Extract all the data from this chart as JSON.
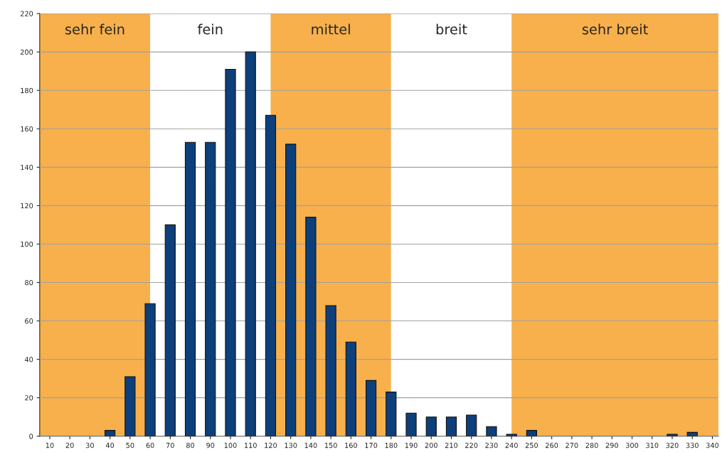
{
  "chart_data": {
    "type": "bar",
    "x": [
      10,
      20,
      30,
      40,
      50,
      60,
      70,
      80,
      90,
      100,
      110,
      120,
      130,
      140,
      150,
      160,
      170,
      180,
      190,
      200,
      210,
      220,
      230,
      240,
      250,
      260,
      270,
      280,
      290,
      300,
      310,
      320,
      330,
      340
    ],
    "values": [
      0,
      0,
      0,
      3,
      31,
      69,
      110,
      153,
      153,
      191,
      200,
      167,
      152,
      114,
      68,
      49,
      29,
      23,
      12,
      10,
      10,
      11,
      5,
      1,
      3,
      0,
      0,
      0,
      0,
      0,
      0,
      1,
      2,
      0
    ],
    "color": "#0d3f7a",
    "xlim": [
      5,
      343
    ],
    "xticks": [
      10,
      20,
      30,
      40,
      50,
      60,
      70,
      80,
      90,
      100,
      110,
      120,
      130,
      140,
      150,
      160,
      170,
      180,
      190,
      200,
      210,
      220,
      230,
      240,
      250,
      260,
      270,
      280,
      290,
      300,
      310,
      320,
      330,
      340
    ],
    "ylim": [
      0,
      220
    ],
    "yticks": [
      0,
      20,
      40,
      60,
      80,
      100,
      120,
      140,
      160,
      180,
      200,
      220
    ],
    "grid": "y",
    "bands": [
      {
        "axis": "x",
        "from": 5,
        "to": 60,
        "label": "sehr fein",
        "color": "#f7b04c"
      },
      {
        "axis": "x",
        "from": 60,
        "to": 120,
        "label": "fein",
        "color": "#ffffff"
      },
      {
        "axis": "x",
        "from": 120,
        "to": 180,
        "label": "mittel",
        "color": "#f7b04c"
      },
      {
        "axis": "x",
        "from": 180,
        "to": 240,
        "label": "breit",
        "color": "#ffffff"
      },
      {
        "axis": "x",
        "from": 240,
        "to": 343,
        "label": "sehr breit",
        "color": "#f7b04c"
      }
    ]
  }
}
